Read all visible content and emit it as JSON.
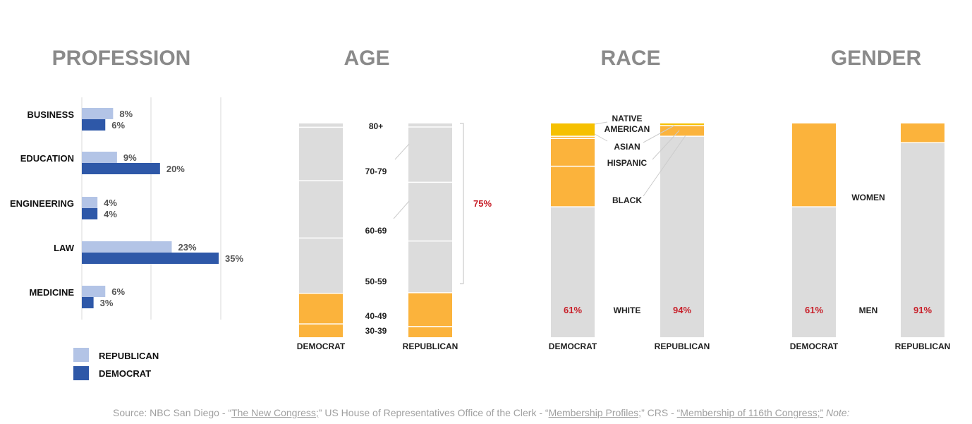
{
  "titles": {
    "profession": "PROFESSION",
    "age": "AGE",
    "race": "RACE",
    "gender": "GENDER"
  },
  "colors": {
    "republican_light": "#b3c4e6",
    "democrat_dark": "#2e58a8",
    "orange": "#fbb33c",
    "gold": "#f6c000",
    "gray": "#dcdcdc",
    "red": "#c8202a"
  },
  "legend": {
    "republican": "REPUBLICAN",
    "democrat": "DEMOCRAT"
  },
  "chart_data": [
    {
      "type": "bar",
      "orientation": "horizontal",
      "title": "PROFESSION",
      "categories": [
        "BUSINESS",
        "EDUCATION",
        "ENGINEERING",
        "LAW",
        "MEDICINE"
      ],
      "series": [
        {
          "name": "REPUBLICAN",
          "values": [
            8,
            9,
            4,
            23,
            6
          ],
          "labels": [
            "8%",
            "9%",
            "4%",
            "23%",
            "6%"
          ]
        },
        {
          "name": "DEMOCRAT",
          "values": [
            6,
            20,
            4,
            35,
            3
          ],
          "labels": [
            "6%",
            "20%",
            "4%",
            "35%",
            "3%"
          ]
        }
      ],
      "xlim": [
        0,
        45
      ],
      "grid": true,
      "legend_position": "bottom-left"
    },
    {
      "type": "bar",
      "stacked": true,
      "title": "AGE",
      "columns": [
        "DEMOCRAT",
        "REPUBLICAN"
      ],
      "age_groups": [
        "30-39",
        "40-49",
        "50-59",
        "60-69",
        "70-79",
        "80+"
      ],
      "series": [
        {
          "column": "DEMOCRAT",
          "values": [
            7,
            16,
            29,
            30,
            28,
            2
          ]
        },
        {
          "column": "REPUBLICAN",
          "values": [
            6,
            19,
            29,
            33,
            31,
            2
          ]
        }
      ],
      "highlight_groups": [
        "30-39",
        "40-49"
      ],
      "annotation": "75%"
    },
    {
      "type": "bar",
      "stacked": true,
      "title": "RACE",
      "columns": [
        "DEMOCRAT",
        "REPUBLICAN"
      ],
      "categories": [
        "WHITE",
        "BLACK",
        "HISPANIC",
        "ASIAN",
        "NATIVE AMERICAN"
      ],
      "series": [
        {
          "column": "DEMOCRAT",
          "values": [
            61,
            19,
            13,
            1,
            6
          ]
        },
        {
          "column": "REPUBLICAN",
          "values": [
            94,
            0,
            5,
            0,
            1
          ]
        }
      ],
      "data_labels": {
        "DEMOCRAT": "61%",
        "REPUBLICAN": "94%"
      }
    },
    {
      "type": "bar",
      "stacked": true,
      "title": "GENDER",
      "columns": [
        "DEMOCRAT",
        "REPUBLICAN"
      ],
      "categories": [
        "MEN",
        "WOMEN"
      ],
      "series": [
        {
          "column": "DEMOCRAT",
          "values": [
            61,
            39
          ]
        },
        {
          "column": "REPUBLICAN",
          "values": [
            91,
            9
          ]
        }
      ],
      "data_labels": {
        "DEMOCRAT": "61%",
        "REPUBLICAN": "91%"
      }
    }
  ],
  "race_labels": {
    "native_line1": "NATIVE",
    "native_line2": "AMERICAN"
  },
  "source": {
    "prefix": "Source: NBC San Diego - “",
    "link1": "The New Congress;",
    "part2": "” US House of Representatives Office of the Clerk - “",
    "link2": "Membership Profiles;",
    "part3": "” CRS - ",
    "link3": "“Membership of 116th Congress;”",
    "note": "Note:"
  }
}
